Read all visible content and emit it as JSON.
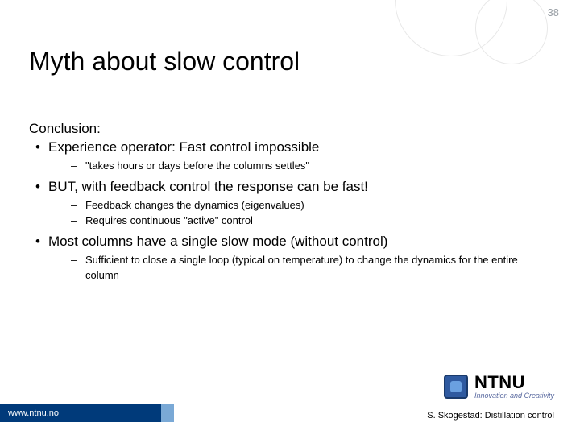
{
  "page_number": "38",
  "title": "Myth about slow control",
  "conclusion_label": "Conclusion:",
  "bullets": [
    {
      "text": "Experience operator: Fast control impossible",
      "subs": [
        "\"takes hours or days before the columns settles\""
      ]
    },
    {
      "text": "BUT, with feedback control the response can be fast!",
      "subs": [
        "Feedback changes the dynamics (eigenvalues)",
        "Requires continuous \"active\" control"
      ]
    },
    {
      "text": "Most columns have a single slow mode (without control)",
      "subs": [
        "Sufficient to close a single loop (typical on temperature) to change the dynamics for the entire column"
      ]
    }
  ],
  "footer_url": "www.ntnu.no",
  "logo_name": "NTNU",
  "logo_tagline": "Innovation and Creativity",
  "author_line": "S. Skogestad: Distillation control",
  "colors": {
    "footer_bar": "#003a7a",
    "footer_accent": "#7aa9d6",
    "page_number": "#9aa0a6"
  }
}
